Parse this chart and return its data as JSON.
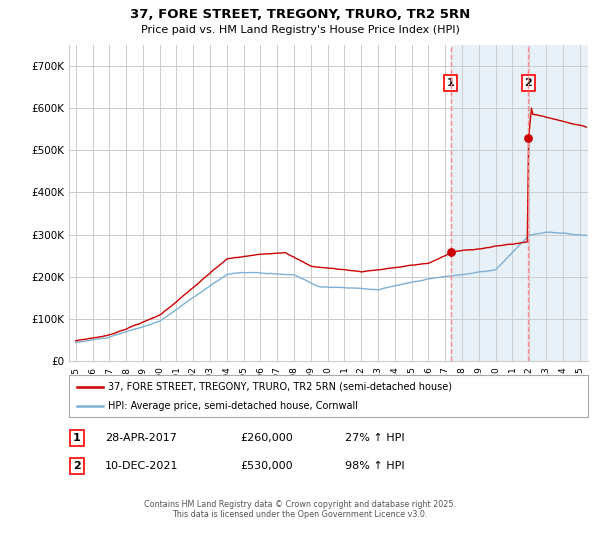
{
  "title": "37, FORE STREET, TREGONY, TRURO, TR2 5RN",
  "subtitle": "Price paid vs. HM Land Registry's House Price Index (HPI)",
  "legend_line1": "37, FORE STREET, TREGONY, TRURO, TR2 5RN (semi-detached house)",
  "legend_line2": "HPI: Average price, semi-detached house, Cornwall",
  "footer_line1": "Contains HM Land Registry data © Crown copyright and database right 2025.",
  "footer_line2": "This data is licensed under the Open Government Licence v3.0.",
  "ann1_label": "1",
  "ann1_date": "28-APR-2017",
  "ann1_price": "£260,000",
  "ann1_hpi": "27% ↑ HPI",
  "ann1_x": 2017.32,
  "ann1_y": 260000,
  "ann2_label": "2",
  "ann2_date": "10-DEC-2021",
  "ann2_price": "£530,000",
  "ann2_hpi": "98% ↑ HPI",
  "ann2_x": 2021.94,
  "ann2_y": 530000,
  "hpi_color": "#7eb0d5",
  "price_color": "#cc0000",
  "vline_color": "#ff8888",
  "shade_color": "#e8f0f8",
  "grid_color": "#cccccc",
  "bg_color": "#ffffff",
  "ylim": [
    0,
    750000
  ],
  "xlim_start": 1994.6,
  "xlim_end": 2025.5,
  "yticks": [
    0,
    100000,
    200000,
    300000,
    400000,
    500000,
    600000,
    700000
  ],
  "ytick_labels": [
    "£0",
    "£100K",
    "£200K",
    "£300K",
    "£400K",
    "£500K",
    "£600K",
    "£700K"
  ],
  "x_years": [
    1995,
    1996,
    1997,
    1998,
    1999,
    2000,
    2001,
    2002,
    2003,
    2004,
    2005,
    2006,
    2007,
    2008,
    2009,
    2010,
    2011,
    2012,
    2013,
    2014,
    2015,
    2016,
    2017,
    2018,
    2019,
    2020,
    2021,
    2022,
    2023,
    2024,
    2025
  ]
}
